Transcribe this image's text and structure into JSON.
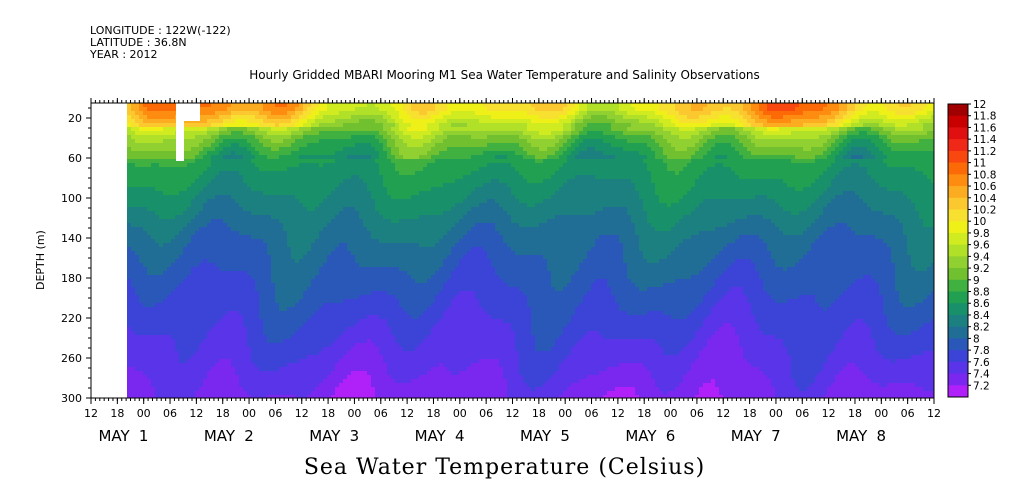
{
  "header": {
    "longitude": "LONGITUDE : 122W(-122)",
    "latitude": "LATITUDE : 36.8N",
    "year": "YEAR : 2012"
  },
  "chart_data": {
    "type": "heatmap",
    "title": "Hourly Gridded MBARI Mooring M1 Sea Water Temperature and Salinity Observations",
    "xlabel": "Sea Water Temperature (Celsius)",
    "ylabel": "DEPTH (m)",
    "y_ticks": [
      20,
      60,
      100,
      140,
      180,
      220,
      260,
      300
    ],
    "y_range": [
      5,
      300
    ],
    "x_hour_ticks": [
      "12",
      "18",
      "00",
      "06",
      "12",
      "18",
      "00",
      "06",
      "12",
      "18",
      "00",
      "06",
      "12",
      "18",
      "00",
      "06",
      "12",
      "18",
      "00",
      "06",
      "12",
      "18",
      "00",
      "06",
      "12",
      "18",
      "00",
      "06",
      "12",
      "18",
      "00",
      "06",
      "12"
    ],
    "x_days": [
      {
        "label": "MAY",
        "day": "1"
      },
      {
        "label": "MAY",
        "day": "2"
      },
      {
        "label": "MAY",
        "day": "3"
      },
      {
        "label": "MAY",
        "day": "4"
      },
      {
        "label": "MAY",
        "day": "5"
      },
      {
        "label": "MAY",
        "day": "6"
      },
      {
        "label": "MAY",
        "day": "7"
      },
      {
        "label": "MAY",
        "day": "8"
      }
    ],
    "colorbar_levels": [
      "12",
      "11.8",
      "11.6",
      "11.4",
      "11.2",
      "11",
      "10.8",
      "10.6",
      "10.4",
      "10.2",
      "10",
      "9.8",
      "9.6",
      "9.4",
      "9.2",
      "9",
      "8.8",
      "8.6",
      "8.4",
      "8.2",
      "8",
      "7.8",
      "7.6",
      "7.4",
      "7.2"
    ],
    "colorbar_colors": [
      "#a00000",
      "#c80000",
      "#e01010",
      "#f02818",
      "#f84810",
      "#fc6a08",
      "#fd8c10",
      "#fcac20",
      "#fcc830",
      "#f8e030",
      "#eef018",
      "#d0ec20",
      "#b0e028",
      "#90d030",
      "#70c030",
      "#40b040",
      "#20a050",
      "#18906a",
      "#1c8080",
      "#206e96",
      "#2a58b8",
      "#3c44d8",
      "#5a34e8",
      "#7a28f0",
      "#b020f8"
    ],
    "depth_profile_deg_c": [
      {
        "depth": 10,
        "temp": 10.3
      },
      {
        "depth": 20,
        "temp": 10.0
      },
      {
        "depth": 40,
        "temp": 9.3
      },
      {
        "depth": 60,
        "temp": 8.9
      },
      {
        "depth": 100,
        "temp": 8.6
      },
      {
        "depth": 140,
        "temp": 8.3
      },
      {
        "depth": 180,
        "temp": 8.1
      },
      {
        "depth": 220,
        "temp": 7.9
      },
      {
        "depth": 260,
        "temp": 7.7
      },
      {
        "depth": 300,
        "temp": 7.5
      }
    ]
  }
}
